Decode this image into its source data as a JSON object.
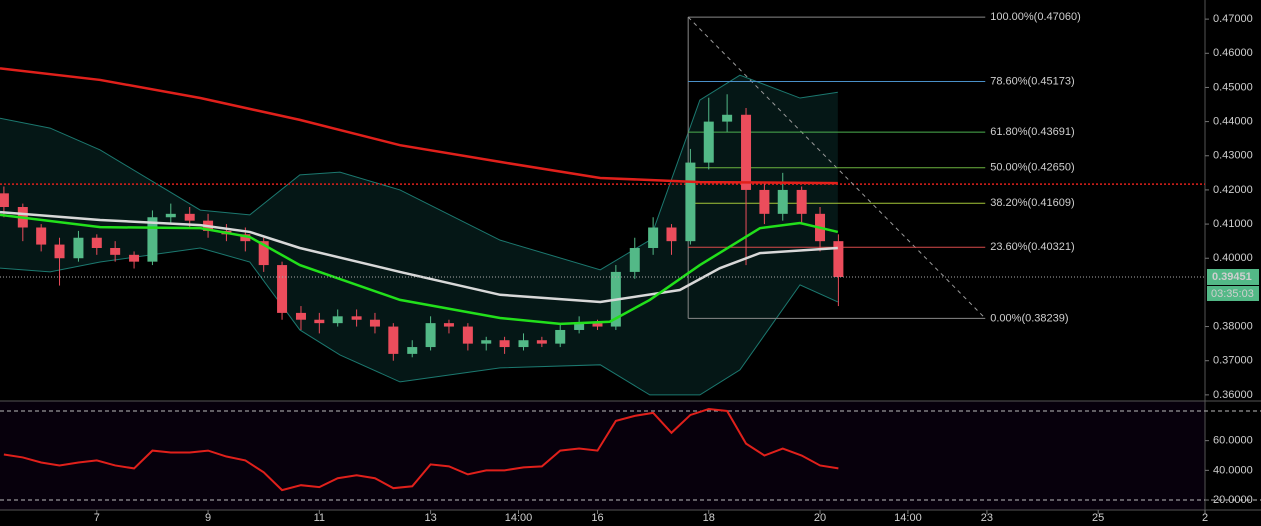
{
  "chart_data": [
    {
      "type": "candlestick",
      "xlim": [
        5.26,
        26.92
      ],
      "ylim": [
        0.3585,
        0.4756
      ],
      "xticks": [
        7,
        9,
        11,
        13,
        {
          "value": 14.58,
          "label": "14:00"
        },
        16,
        18,
        20,
        {
          "value": 21.58,
          "label": "14:00"
        },
        23,
        25,
        {
          "value": 26.92,
          "label": "2"
        }
      ],
      "yticks": [
        {
          "value": 0.47,
          "label": "0.47000"
        },
        {
          "value": 0.46,
          "label": "0.46000"
        },
        {
          "value": 0.45,
          "label": "0.45000"
        },
        {
          "value": 0.44,
          "label": "0.44000"
        },
        {
          "value": 0.43,
          "label": "0.43000"
        },
        {
          "value": 0.42,
          "label": "0.42000"
        },
        {
          "value": 0.41,
          "label": "0.41000"
        },
        {
          "value": 0.4,
          "label": "0.40000"
        },
        {
          "value": 0.38,
          "label": "0.38000"
        },
        {
          "value": 0.37,
          "label": "0.37000"
        },
        {
          "value": 0.36,
          "label": "0.36000"
        }
      ],
      "up_color": "#53b987",
      "down_color": "#eb4d5c",
      "x": [
        5.33,
        5.67,
        6,
        6.33,
        6.67,
        7,
        7.33,
        7.67,
        8,
        8.33,
        8.67,
        9,
        9.33,
        9.67,
        10,
        10.33,
        10.67,
        11,
        11.33,
        11.67,
        12,
        12.33,
        12.67,
        13,
        13.33,
        13.67,
        14,
        14.33,
        14.67,
        15,
        15.33,
        15.67,
        16,
        16.33,
        16.67,
        17,
        17.33,
        17.67,
        18,
        18.33,
        18.67,
        19,
        19.33,
        19.67,
        20,
        20.33
      ],
      "open": [
        0.419,
        0.415,
        0.409,
        0.404,
        0.4,
        0.406,
        0.403,
        0.401,
        0.399,
        0.412,
        0.413,
        0.411,
        0.408,
        0.407,
        0.405,
        0.398,
        0.384,
        0.382,
        0.381,
        0.383,
        0.382,
        0.38,
        0.372,
        0.374,
        0.381,
        0.38,
        0.375,
        0.376,
        0.374,
        0.376,
        0.375,
        0.379,
        0.381,
        0.38,
        0.396,
        0.403,
        0.409,
        0.405,
        0.428,
        0.44,
        0.442,
        0.42,
        0.413,
        0.42,
        0.413,
        0.405
      ],
      "high": [
        0.421,
        0.416,
        0.41,
        0.406,
        0.408,
        0.407,
        0.405,
        0.402,
        0.414,
        0.416,
        0.415,
        0.413,
        0.41,
        0.409,
        0.406,
        0.399,
        0.386,
        0.384,
        0.385,
        0.385,
        0.384,
        0.381,
        0.376,
        0.383,
        0.382,
        0.381,
        0.377,
        0.377,
        0.378,
        0.377,
        0.381,
        0.383,
        0.382,
        0.398,
        0.406,
        0.412,
        0.41,
        0.432,
        0.447,
        0.448,
        0.444,
        0.422,
        0.425,
        0.421,
        0.415,
        0.407
      ],
      "low": [
        0.412,
        0.405,
        0.402,
        0.392,
        0.399,
        0.401,
        0.399,
        0.397,
        0.398,
        0.41,
        0.409,
        0.406,
        0.405,
        0.402,
        0.396,
        0.382,
        0.379,
        0.378,
        0.38,
        0.38,
        0.378,
        0.37,
        0.371,
        0.373,
        0.378,
        0.373,
        0.373,
        0.372,
        0.373,
        0.374,
        0.374,
        0.378,
        0.379,
        0.379,
        0.394,
        0.401,
        0.401,
        0.404,
        0.426,
        0.437,
        0.398,
        0.41,
        0.411,
        0.41,
        0.402,
        0.386
      ],
      "close": [
        0.415,
        0.409,
        0.404,
        0.4,
        0.406,
        0.403,
        0.401,
        0.399,
        0.412,
        0.413,
        0.411,
        0.408,
        0.407,
        0.405,
        0.398,
        0.384,
        0.382,
        0.381,
        0.383,
        0.382,
        0.38,
        0.372,
        0.374,
        0.381,
        0.38,
        0.375,
        0.376,
        0.374,
        0.376,
        0.375,
        0.379,
        0.381,
        0.38,
        0.396,
        0.403,
        0.409,
        0.405,
        0.428,
        0.44,
        0.442,
        0.42,
        0.413,
        0.42,
        0.413,
        0.405,
        0.39451
      ],
      "band": {
        "color": "#26a69a",
        "x": [
          5.26,
          6.16,
          7.06,
          8.86,
          9.75,
          10.65,
          11.37,
          12.45,
          14.25,
          16.05,
          16.94,
          17.84,
          18.56,
          19.64,
          20.32
        ],
        "upper": [
          0.441,
          0.4381,
          0.4317,
          0.4141,
          0.4127,
          0.4244,
          0.4252,
          0.42,
          0.4053,
          0.3966,
          0.4053,
          0.4463,
          0.4536,
          0.4469,
          0.4486
        ],
        "lower": [
          0.3971,
          0.396,
          0.3989,
          0.403,
          0.3989,
          0.379,
          0.3717,
          0.3638,
          0.3679,
          0.3688,
          0.36,
          0.36,
          0.3673,
          0.3922,
          0.3872
        ]
      },
      "series": [
        {
          "color": "#e0201b",
          "width": 2.5,
          "x": [
            5.26,
            7.06,
            8.86,
            10.65,
            12.45,
            14.25,
            16.05,
            17.84,
            20.32
          ],
          "values": [
            0.4556,
            0.4522,
            0.4469,
            0.4405,
            0.4331,
            0.4282,
            0.4235,
            0.4223,
            0.422
          ]
        },
        {
          "color": "#d8d8d8",
          "width": 2.5,
          "x": [
            5.26,
            7.06,
            8.86,
            9.75,
            10.65,
            12.45,
            14.25,
            16.05,
            17.48,
            18.2,
            18.92,
            20.32
          ],
          "values": [
            0.4135,
            0.4112,
            0.4097,
            0.4077,
            0.403,
            0.396,
            0.3893,
            0.3872,
            0.3907,
            0.3971,
            0.4015,
            0.403
          ]
        },
        {
          "color": "#22e01b",
          "width": 2.5,
          "x": [
            5.26,
            7.06,
            8.86,
            9.75,
            10.65,
            12.45,
            14.25,
            15.33,
            16.22,
            16.94,
            17.84,
            18.92,
            19.64,
            20.32
          ],
          "values": [
            0.4127,
            0.4091,
            0.4088,
            0.4062,
            0.398,
            0.3878,
            0.3825,
            0.3808,
            0.3814,
            0.3878,
            0.398,
            0.4088,
            0.4103,
            0.4077
          ]
        }
      ],
      "hlines": [
        {
          "value": 0.4217,
          "color": "#e0201b"
        }
      ],
      "last_price": {
        "value": 0.39451,
        "label": "0.39451",
        "color": "#53b987"
      },
      "countdown": "03:35:03",
      "fib": {
        "x": [
          17.63,
          22.97
        ],
        "levels": [
          {
            "value": 0.4706,
            "label": "100.00%(0.47060)",
            "color": "#888888"
          },
          {
            "value": 0.45173,
            "label": "78.60%(0.45173)",
            "color": "#4a90c8"
          },
          {
            "value": 0.43691,
            "label": "61.80%(0.43691)",
            "color": "#4caf50"
          },
          {
            "value": 0.4265,
            "label": "50.00%(0.42650)",
            "color": "#6cb33f"
          },
          {
            "value": 0.41609,
            "label": "38.20%(0.41609)",
            "color": "#a4c639"
          },
          {
            "value": 0.40321,
            "label": "23.60%(0.40321)",
            "color": "#d84a4a"
          },
          {
            "value": 0.38239,
            "label": "0.00%(0.38239)",
            "color": "#888888"
          }
        ]
      }
    },
    {
      "type": "line",
      "ylim": [
        13.3,
        86.7
      ],
      "yticks": [
        {
          "value": 60,
          "label": "60.0000"
        },
        {
          "value": 40,
          "label": "40.0000"
        },
        {
          "value": 20,
          "label": "20.0000"
        }
      ],
      "hlines": [
        80,
        20
      ],
      "color": "#e0201b",
      "values": [
        50.7,
        48.7,
        45.3,
        43.3,
        45.3,
        46.7,
        43.3,
        41.3,
        53.3,
        52,
        52,
        53.3,
        49.3,
        46.7,
        38.7,
        26.7,
        30,
        28.7,
        34.7,
        36.7,
        34.7,
        28,
        29.3,
        44,
        42.7,
        37.3,
        40,
        40,
        42,
        42.7,
        53.3,
        54.7,
        53.3,
        73.3,
        76.7,
        78.7,
        65.3,
        77.3,
        81.3,
        80,
        58,
        50,
        54.7,
        50,
        43.3,
        41.3
      ]
    }
  ]
}
